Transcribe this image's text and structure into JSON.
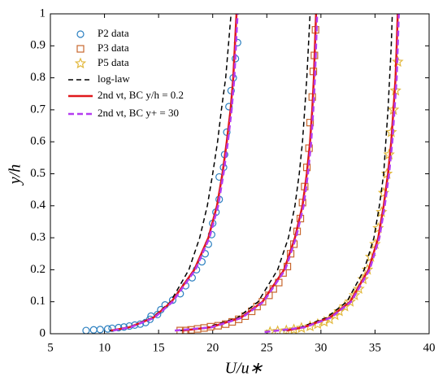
{
  "chart_data": {
    "type": "scatter-line",
    "xlabel": "U/u∗",
    "ylabel": "y/h",
    "xlim": [
      5,
      40
    ],
    "xticks": [
      5,
      10,
      15,
      20,
      25,
      30,
      35,
      40
    ],
    "ylim": [
      0,
      1
    ],
    "yticks": [
      0,
      0.1,
      0.2,
      0.3,
      0.4,
      0.5,
      0.6,
      0.7,
      0.8,
      0.9,
      1
    ],
    "legend": "upper left",
    "series": [
      {
        "name": "P2 data",
        "color": "#2a7fc0",
        "marker": "circle",
        "x": [
          8.3,
          9,
          9.6,
          10.3,
          10.7,
          11.3,
          11.8,
          12.3,
          12.8,
          13.3,
          13.8,
          14.2,
          14.3,
          14.9,
          15.2,
          15.6,
          16.3,
          17,
          17.5,
          18.1,
          18.5,
          19,
          19.3,
          19.6,
          19.9,
          20,
          20.3,
          20.6,
          20.6,
          21,
          21.1,
          21.3,
          21.5,
          21.7,
          21.9,
          22.1,
          22.3
        ],
        "values": [
          0.01,
          0.012,
          0.013,
          0.015,
          0.017,
          0.019,
          0.021,
          0.024,
          0.027,
          0.03,
          0.035,
          0.045,
          0.055,
          0.06,
          0.075,
          0.09,
          0.105,
          0.125,
          0.15,
          0.175,
          0.2,
          0.225,
          0.25,
          0.28,
          0.31,
          0.345,
          0.38,
          0.42,
          0.49,
          0.52,
          0.56,
          0.63,
          0.71,
          0.76,
          0.8,
          0.86,
          0.91
        ]
      },
      {
        "name": "P3 data",
        "color": "#c8672e",
        "marker": "square",
        "x": [
          17,
          17.5,
          18,
          18.6,
          19.2,
          19.8,
          20.5,
          21.2,
          21.8,
          22.4,
          23,
          23.6,
          24.1,
          24.6,
          25.2,
          25.6,
          26.1,
          26.5,
          26.9,
          27.2,
          27.5,
          27.8,
          28.1,
          28.3,
          28.5,
          28.7,
          28.9,
          29,
          29.2,
          29.3,
          29.4,
          29.5
        ],
        "values": [
          0.01,
          0.01,
          0.012,
          0.015,
          0.018,
          0.022,
          0.025,
          0.03,
          0.037,
          0.045,
          0.055,
          0.07,
          0.085,
          0.1,
          0.12,
          0.14,
          0.16,
          0.19,
          0.21,
          0.25,
          0.28,
          0.32,
          0.36,
          0.41,
          0.46,
          0.52,
          0.58,
          0.66,
          0.74,
          0.82,
          0.87,
          0.95
        ]
      },
      {
        "name": "P5 data",
        "color": "#e2b83c",
        "marker": "star",
        "x": [
          25.3,
          26,
          26.8,
          27.5,
          28.2,
          29,
          29.7,
          30.3,
          30.8,
          31.3,
          31.7,
          32.2,
          32.7,
          33.1,
          33.5,
          33.9,
          34.3,
          34.6,
          35,
          35.3,
          35.6,
          35.8,
          36.1,
          36.3,
          36.5,
          36.7,
          36.9,
          37.1
        ],
        "values": [
          0.005,
          0.008,
          0.01,
          0.013,
          0.018,
          0.023,
          0.03,
          0.037,
          0.045,
          0.058,
          0.07,
          0.085,
          0.1,
          0.12,
          0.14,
          0.17,
          0.2,
          0.24,
          0.28,
          0.33,
          0.38,
          0.44,
          0.5,
          0.56,
          0.63,
          0.7,
          0.76,
          0.85
        ]
      },
      {
        "name": "log-law",
        "color": "#000000",
        "dash": "6,4",
        "width": 1.5,
        "curves": [
          {
            "x": [
              10.5,
              12.2,
              14.4,
              16.1,
              17.8,
              18.8,
              19.5,
              20,
              20.45,
              20.8,
              21.2,
              21.45,
              21.7
            ],
            "values": [
              0.01,
              0.02,
              0.05,
              0.1,
              0.2,
              0.3,
              0.4,
              0.5,
              0.6,
              0.7,
              0.8,
              0.9,
              1
            ]
          },
          {
            "x": [
              17,
              19.5,
              22.3,
              24.2,
              26,
              27,
              27.6,
              28,
              28.3,
              28.5,
              28.7,
              28.85,
              29
            ],
            "values": [
              0.01,
              0.02,
              0.05,
              0.1,
              0.2,
              0.3,
              0.4,
              0.5,
              0.6,
              0.7,
              0.8,
              0.9,
              1
            ]
          },
          {
            "x": [
              26.5,
              28.1,
              30.5,
              32.4,
              34,
              34.9,
              35.4,
              35.8,
              36,
              36.2,
              36.35,
              36.5,
              36.6
            ],
            "values": [
              0.01,
              0.02,
              0.05,
              0.1,
              0.2,
              0.3,
              0.4,
              0.5,
              0.6,
              0.7,
              0.8,
              0.9,
              1
            ]
          }
        ]
      },
      {
        "name": "2nd νt, BC y/h = 0.2",
        "color": "#e0181c",
        "dash": "none",
        "width": 2.5,
        "curves": [
          {
            "x": [
              10.6,
              12.3,
              14.5,
              16.2,
              18.3,
              19.6,
              20.4,
              20.9,
              21.3,
              21.65,
              21.9,
              22.05,
              22.2
            ],
            "values": [
              0.01,
              0.02,
              0.05,
              0.1,
              0.2,
              0.3,
              0.4,
              0.5,
              0.6,
              0.7,
              0.8,
              0.9,
              1
            ]
          },
          {
            "x": [
              17.2,
              19.8,
              22.6,
              24.6,
              26.6,
              27.6,
              28.3,
              28.7,
              29,
              29.2,
              29.35,
              29.45,
              29.55
            ],
            "values": [
              0.01,
              0.02,
              0.05,
              0.1,
              0.2,
              0.3,
              0.4,
              0.5,
              0.6,
              0.7,
              0.8,
              0.9,
              1
            ]
          },
          {
            "x": [
              26.8,
              28.4,
              30.8,
              32.7,
              34.4,
              35.3,
              35.8,
              36.2,
              36.5,
              36.7,
              36.9,
              37,
              37.1
            ],
            "values": [
              0.01,
              0.02,
              0.05,
              0.1,
              0.2,
              0.3,
              0.4,
              0.5,
              0.6,
              0.7,
              0.8,
              0.9,
              1
            ]
          }
        ]
      },
      {
        "name": "2nd νt, BC y+ = 30",
        "color": "#b43cf0",
        "dash": "7,4",
        "width": 2.5,
        "curves": [
          {
            "x": [
              10.8,
              12.4,
              14.6,
              16.3,
              18.4,
              19.7,
              20.5,
              21,
              21.4,
              21.75,
              22,
              22.15,
              22.3
            ],
            "values": [
              0.01,
              0.02,
              0.05,
              0.1,
              0.2,
              0.3,
              0.4,
              0.5,
              0.6,
              0.7,
              0.8,
              0.9,
              1
            ]
          },
          {
            "x": [
              16.5,
              19.9,
              22.7,
              24.7,
              26.7,
              27.7,
              28.4,
              28.8,
              29.1,
              29.3,
              29.45,
              29.55,
              29.65
            ],
            "values": [
              0.01,
              0.02,
              0.05,
              0.1,
              0.2,
              0.3,
              0.4,
              0.5,
              0.6,
              0.7,
              0.8,
              0.9,
              1
            ]
          },
          {
            "x": [
              24.8,
              28.5,
              30.9,
              32.8,
              34.5,
              35.4,
              35.9,
              36.3,
              36.6,
              36.8,
              37,
              37.1,
              37.2
            ],
            "values": [
              0.005,
              0.02,
              0.05,
              0.1,
              0.2,
              0.3,
              0.4,
              0.5,
              0.6,
              0.7,
              0.8,
              0.9,
              1
            ]
          }
        ]
      }
    ]
  }
}
